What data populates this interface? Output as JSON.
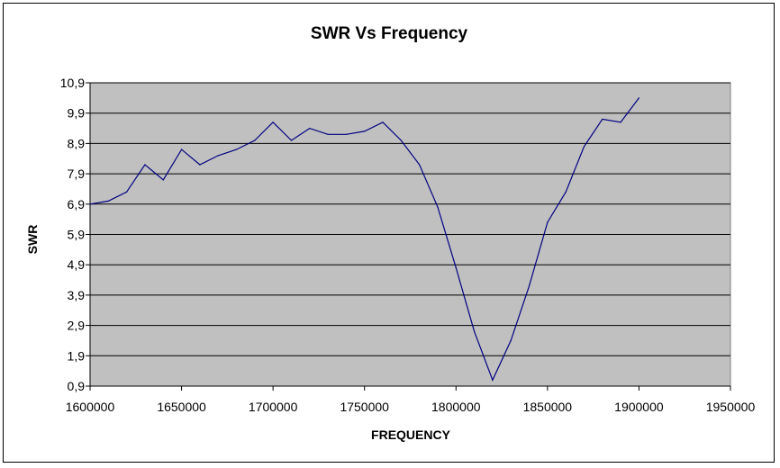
{
  "chart_data": {
    "type": "line",
    "title": "SWR Vs Frequency",
    "xlabel": "FREQUENCY",
    "ylabel": "SWR",
    "xlim": [
      1600000,
      1950000
    ],
    "ylim": [
      0.9,
      10.9
    ],
    "x_ticks": [
      1600000,
      1650000,
      1700000,
      1750000,
      1800000,
      1850000,
      1900000,
      1950000
    ],
    "x_tick_labels": [
      "1600000",
      "1650000",
      "1700000",
      "1750000",
      "1800000",
      "1850000",
      "1900000",
      "1950000"
    ],
    "y_ticks": [
      0.9,
      1.9,
      2.9,
      3.9,
      4.9,
      5.9,
      6.9,
      7.9,
      8.9,
      9.9,
      10.9
    ],
    "y_tick_labels": [
      "0,9",
      "1,9",
      "2,9",
      "3,9",
      "4,9",
      "5,9",
      "6,9",
      "7,9",
      "8,9",
      "9,9",
      "10,9"
    ],
    "grid": "horizontal",
    "legend": "none",
    "colors": {
      "plot_background": "#c0c0c0",
      "line": "#000080",
      "gridline": "#000000"
    },
    "series": [
      {
        "x": [
          1600000,
          1610000,
          1620000,
          1630000,
          1640000,
          1650000,
          1660000,
          1670000,
          1680000,
          1690000,
          1700000,
          1710000,
          1720000,
          1730000,
          1740000,
          1750000,
          1760000,
          1770000,
          1780000,
          1790000,
          1800000,
          1810000,
          1820000,
          1830000,
          1840000,
          1850000,
          1860000,
          1870000,
          1880000,
          1890000,
          1900000
        ],
        "values": [
          6.9,
          7.0,
          7.3,
          8.2,
          7.7,
          8.7,
          8.2,
          8.5,
          8.7,
          9.0,
          9.6,
          9.0,
          9.4,
          9.2,
          9.2,
          9.3,
          9.6,
          9.0,
          8.2,
          6.8,
          4.8,
          2.7,
          1.1,
          2.4,
          4.2,
          6.3,
          7.3,
          8.8,
          9.7,
          9.6,
          10.4
        ]
      }
    ]
  }
}
